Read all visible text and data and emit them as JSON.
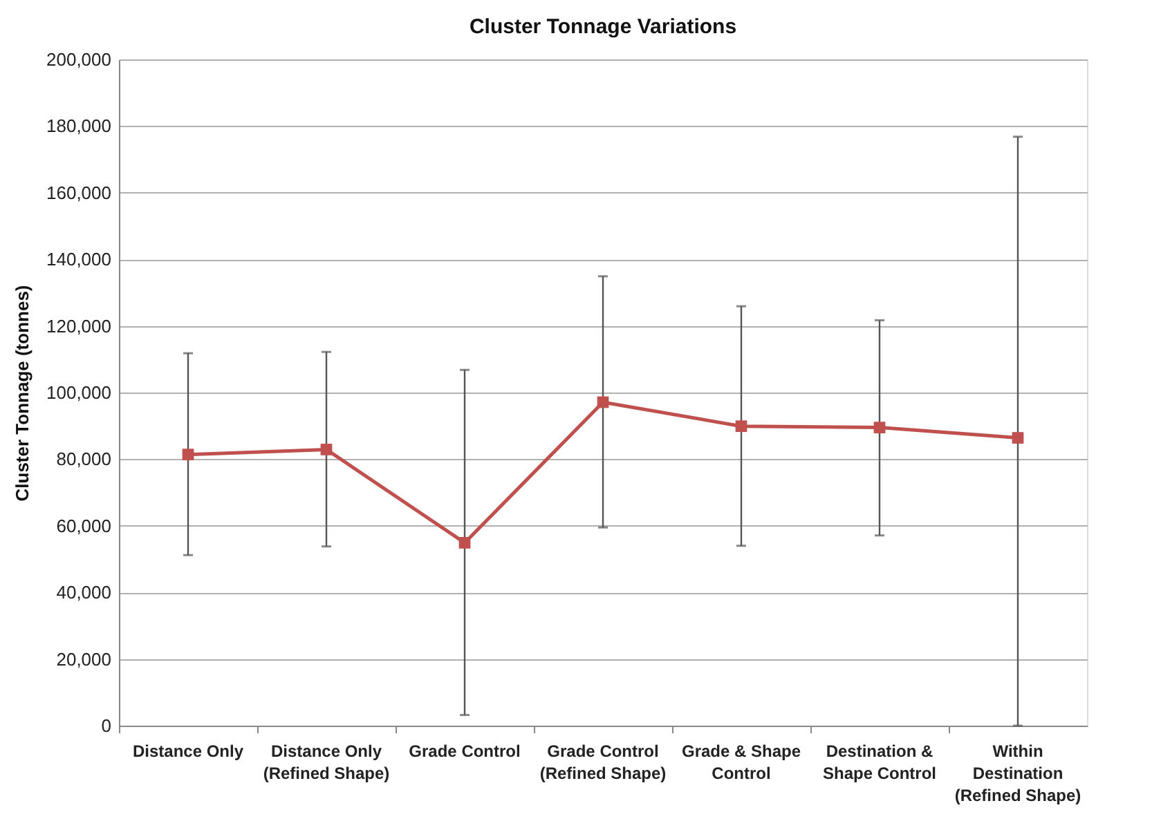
{
  "chart_data": {
    "type": "line",
    "title": "Cluster Tonnage Variations",
    "ylabel": "Cluster Tonnage (tonnes)",
    "categories": [
      "Distance Only",
      "Distance Only (Refined Shape)",
      "Grade Control",
      "Grade Control (Refined Shape)",
      "Grade & Shape Control",
      "Destination & Shape Control",
      "Within Destination (Refined Shape)"
    ],
    "series": [
      {
        "color": "#c0504d",
        "values": [
          81400,
          82900,
          54900,
          97100,
          89900,
          89500,
          86400
        ],
        "errors": [
          [
            51200,
            111800
          ],
          [
            53800,
            112200
          ],
          [
            3200,
            106800
          ],
          [
            59500,
            134900
          ],
          [
            54000,
            125900
          ],
          [
            57100,
            121700
          ],
          [
            0,
            176800
          ]
        ]
      }
    ],
    "ylim": [
      0,
      200000
    ],
    "yticks": [
      0,
      {
        "value": 20000,
        "label": "20,000"
      },
      {
        "value": 40000,
        "label": "40,000"
      },
      {
        "value": 60000,
        "label": "60,000"
      },
      {
        "value": 80000,
        "label": "80,000"
      },
      {
        "value": 100000,
        "label": "100,000"
      },
      {
        "value": 120000,
        "label": "120,000"
      },
      {
        "value": 140000,
        "label": "140,000"
      },
      {
        "value": 160000,
        "label": "160,000"
      },
      {
        "value": 180000,
        "label": "180,000"
      },
      {
        "value": 200000,
        "label": "200,000"
      }
    ],
    "grid": "y",
    "marker": "square",
    "line_style": "solid"
  }
}
